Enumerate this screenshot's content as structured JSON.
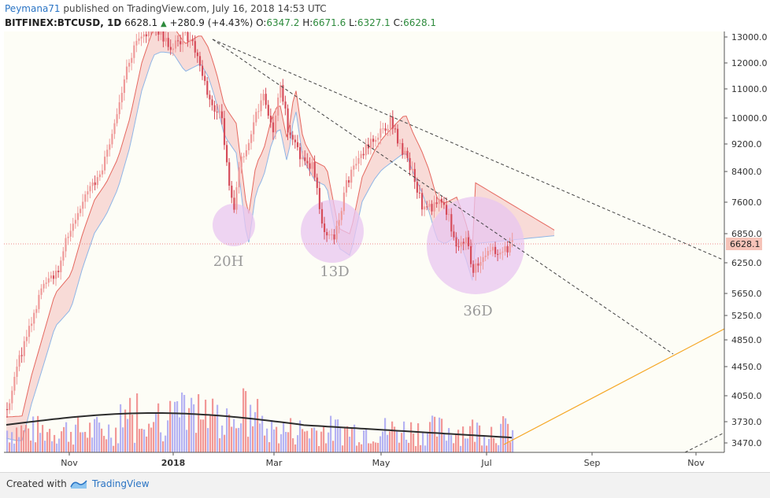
{
  "header": {
    "author": "Peymana71",
    "published": " published on TradingView.com, July 16, 2018 14:53 UTC",
    "symbol": "BITFINEX:BTCUSD, 1D",
    "last": "6628.1",
    "change": "+280.9 (+4.43%)",
    "o_label": "O:",
    "o_value": "6347.2",
    "h_label": "H:",
    "h_value": "6671.6",
    "l_label": "L:",
    "l_value": "6327.1",
    "c_label": "C:",
    "c_value": "6628.1"
  },
  "footer": {
    "created_with": "Created with",
    "brand": "TradingView"
  },
  "colors": {
    "up": "#ef9a9a",
    "down": "#d64c5a",
    "cloud_red": "#f6c9c6",
    "cloud_green": "#cfe8cf",
    "kumo_red_line": "#e5685f",
    "kumo_blue_line": "#8fb6e6",
    "orange": "#f5a623",
    "circle": "#e8c6f0",
    "vol_up": "#a9a6f2",
    "vol_down": "#f08686",
    "ma": "#2d2d2d"
  },
  "chart_data": {
    "type": "candlestick",
    "y_ticks": [
      "13000.0",
      "12000.0",
      "11000.0",
      "10000.0",
      "9200.0",
      "8400.0",
      "7600.0",
      "6850.0",
      "6250.0",
      "5650.0",
      "5250.0",
      "4850.0",
      "4450.0",
      "4050.0",
      "3730.0",
      "3470.0"
    ],
    "x_ticks": [
      "Nov",
      "2018",
      "Mar",
      "May",
      "Jul",
      "Sep",
      "Nov"
    ],
    "last_price_label": "6628.1",
    "annotations": [
      "20H",
      "13D",
      "36D"
    ]
  }
}
